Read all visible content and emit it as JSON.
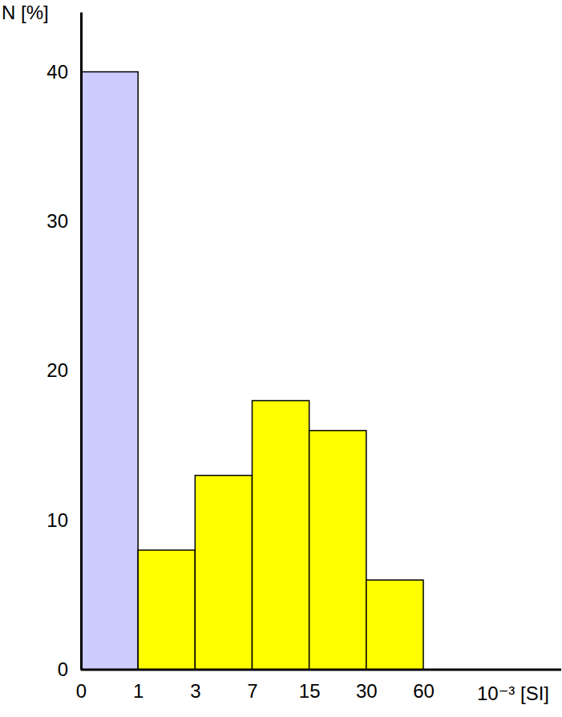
{
  "chart_data": {
    "type": "histogram",
    "bins": [
      0,
      1,
      3,
      7,
      15,
      30,
      60
    ],
    "values": [
      40,
      8,
      13,
      18,
      16,
      6
    ],
    "colors": [
      "#ccccff",
      "#ffff00",
      "#ffff00",
      "#ffff00",
      "#ffff00",
      "#ffff00"
    ],
    "xlabel": "10⁻³ [SI]",
    "ylabel": "N [%]",
    "ylim": [
      0,
      44
    ],
    "yticks": [
      0,
      10,
      20,
      30,
      40
    ],
    "grid": false
  }
}
